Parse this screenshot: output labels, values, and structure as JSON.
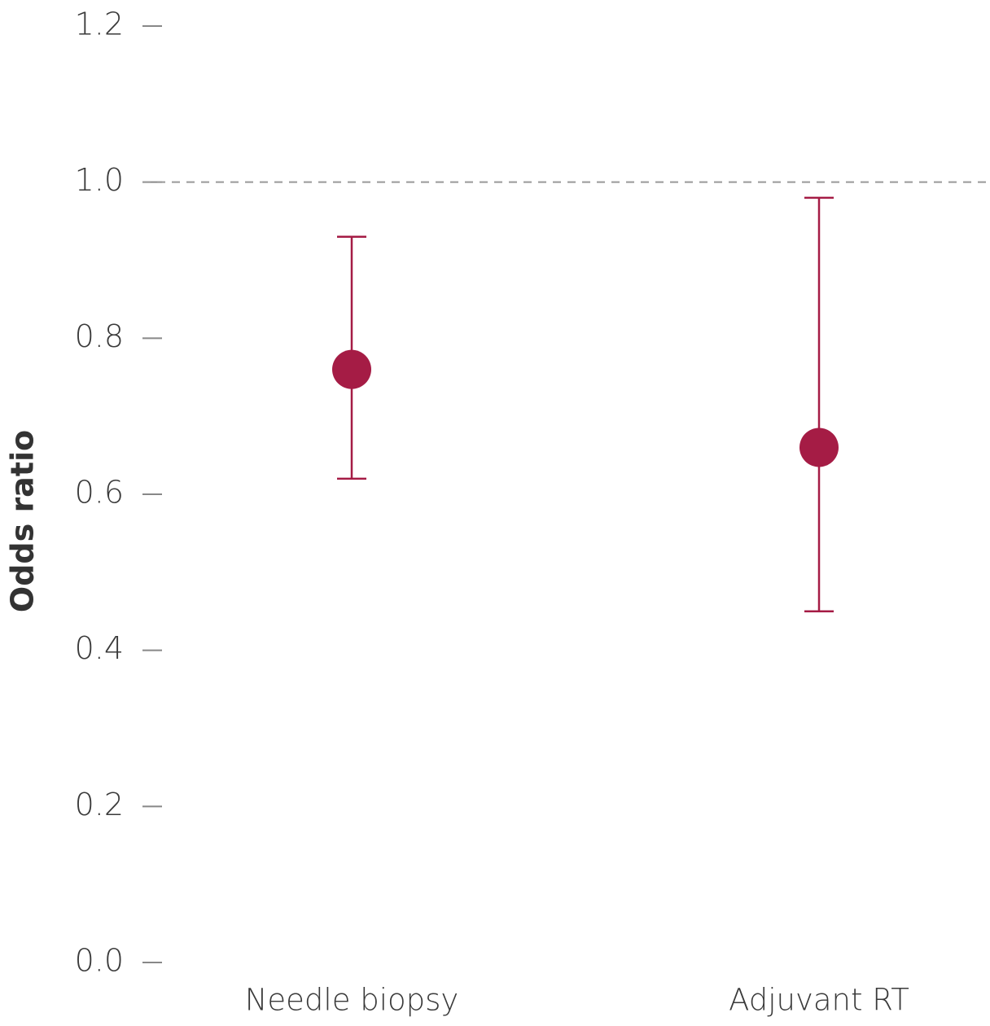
{
  "chart_data": {
    "type": "errorbar",
    "y_label": "Odds ratio",
    "categories": [
      "Needle biopsy",
      "Adjuvant RT"
    ],
    "values": [
      0.76,
      0.66
    ],
    "lower": [
      0.62,
      0.45
    ],
    "upper": [
      0.93,
      0.98
    ],
    "color": "#a51c45",
    "ylim": [
      0,
      1.2
    ],
    "yticks": [
      {
        "value": 0,
        "label": "0.0"
      },
      0.2,
      0.4,
      0.6,
      0.8,
      {
        "value": 1,
        "label": "1.0"
      },
      1.2
    ],
    "reference_line": 1
  }
}
